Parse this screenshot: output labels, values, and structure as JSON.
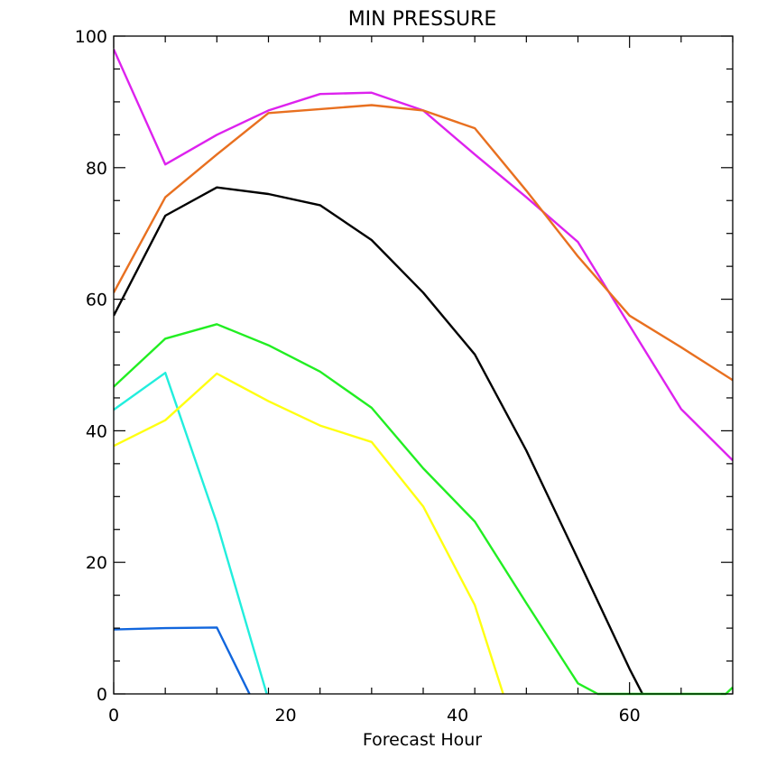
{
  "chart_data": {
    "type": "line",
    "title": "MIN PRESSURE",
    "xlabel": "Forecast Hour",
    "ylabel": "",
    "xlim": [
      0,
      72
    ],
    "ylim": [
      0,
      100
    ],
    "x_ticks": [
      0,
      20,
      40,
      60
    ],
    "y_ticks": [
      0,
      20,
      40,
      60,
      80,
      100
    ],
    "x_minor_step": 6,
    "y_minor_step": 5,
    "grid": false,
    "series": [
      {
        "color": "#dd22ee",
        "points": [
          [
            0,
            98
          ],
          [
            6,
            80.5
          ],
          [
            12,
            85
          ],
          [
            18,
            88.7
          ],
          [
            24,
            91.2
          ],
          [
            30,
            91.4
          ],
          [
            36,
            88.7
          ],
          [
            42,
            82
          ],
          [
            48,
            75.5
          ],
          [
            54,
            68.7
          ],
          [
            60,
            56
          ],
          [
            66,
            43.3
          ],
          [
            72,
            35.5
          ]
        ]
      },
      {
        "color": "#e87020",
        "points": [
          [
            0,
            61
          ],
          [
            6,
            75.5
          ],
          [
            12,
            82
          ],
          [
            18,
            88.3
          ],
          [
            24,
            88.9
          ],
          [
            30,
            89.5
          ],
          [
            36,
            88.7
          ],
          [
            42,
            86
          ],
          [
            48,
            76.5
          ],
          [
            54,
            66.5
          ],
          [
            60,
            57.5
          ],
          [
            66,
            52.7
          ],
          [
            72,
            47.7
          ]
        ]
      },
      {
        "color": "#000000",
        "points": [
          [
            0,
            57.5
          ],
          [
            6,
            72.7
          ],
          [
            12,
            77
          ],
          [
            18,
            76
          ],
          [
            24,
            74.3
          ],
          [
            30,
            69
          ],
          [
            36,
            61
          ],
          [
            42,
            51.6
          ],
          [
            48,
            37
          ],
          [
            54,
            20.5
          ],
          [
            60,
            3.8
          ],
          [
            61.5,
            0
          ]
        ]
      },
      {
        "color": "#22ee22",
        "points": [
          [
            0,
            46.7
          ],
          [
            6,
            54
          ],
          [
            12,
            56.2
          ],
          [
            18,
            53
          ],
          [
            24,
            49
          ],
          [
            30,
            43.5
          ],
          [
            36,
            34.3
          ],
          [
            42,
            26.2
          ],
          [
            48,
            13.8
          ],
          [
            54,
            1.6
          ],
          [
            56.3,
            0
          ],
          [
            71.2,
            0
          ],
          [
            72,
            1
          ]
        ]
      },
      {
        "color": "#22eedd",
        "points": [
          [
            0,
            43.2
          ],
          [
            6,
            48.8
          ],
          [
            12,
            26
          ],
          [
            17.8,
            0
          ]
        ]
      },
      {
        "color": "#ffff11",
        "points": [
          [
            0,
            37.7
          ],
          [
            6,
            41.6
          ],
          [
            12,
            48.7
          ],
          [
            18,
            44.5
          ],
          [
            24,
            40.8
          ],
          [
            30,
            38.3
          ],
          [
            36,
            28.5
          ],
          [
            42,
            13.5
          ],
          [
            45.3,
            0
          ]
        ]
      },
      {
        "color": "#1166dd",
        "points": [
          [
            0,
            9.8
          ],
          [
            6,
            10
          ],
          [
            12,
            10.1
          ],
          [
            15.8,
            0
          ]
        ]
      }
    ]
  }
}
